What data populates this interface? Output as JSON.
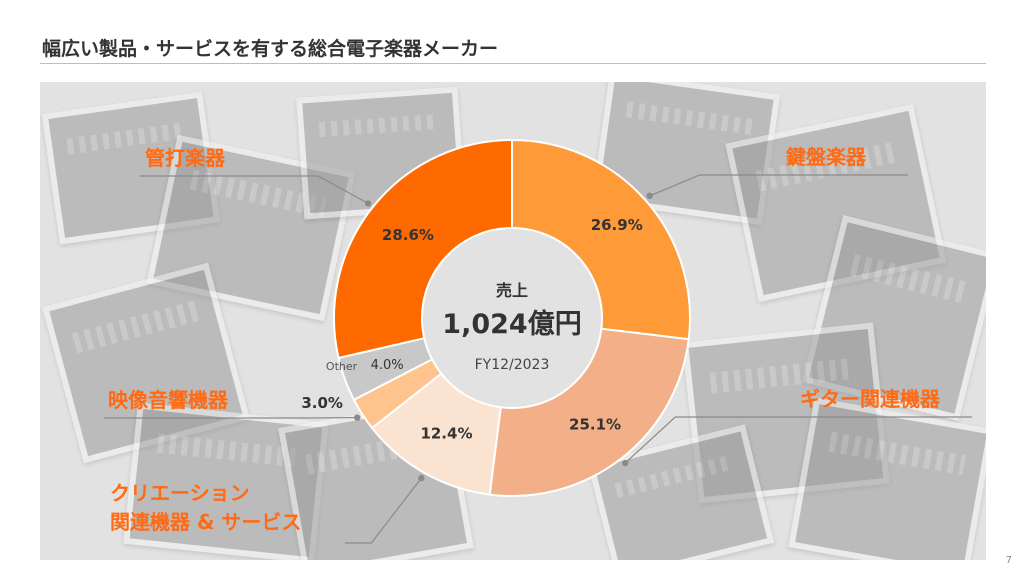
{
  "title": "幅広い製品・サービスを有する総合電子楽器メーカー",
  "page_number": "7",
  "chart_data": {
    "type": "pie",
    "style": "donut",
    "center": {
      "label": "売上",
      "value": "1,024億円",
      "period": "FY12/2023"
    },
    "slices": [
      {
        "category": "鍵盤楽器",
        "value": 26.9,
        "value_label": "26.9%",
        "color": "#ff9a38"
      },
      {
        "category": "ギター関連機器",
        "value": 25.1,
        "value_label": "25.1%",
        "color": "#f3b088"
      },
      {
        "category": "クリエーション関連機器 & サービス",
        "category_lines": [
          "クリエーション",
          "関連機器 & サービス"
        ],
        "value": 12.4,
        "value_label": "12.4%",
        "color": "#fbe3d2"
      },
      {
        "category": "映像音響機器",
        "value": 3.0,
        "value_label": "3.0%",
        "color": "#ffc48d"
      },
      {
        "category": "Other",
        "value": 4.0,
        "value_label": "4.0%",
        "color": "#c8c8c8"
      },
      {
        "category": "管打楽器",
        "value": 28.6,
        "value_label": "28.6%",
        "color": "#ff6a00"
      }
    ]
  }
}
